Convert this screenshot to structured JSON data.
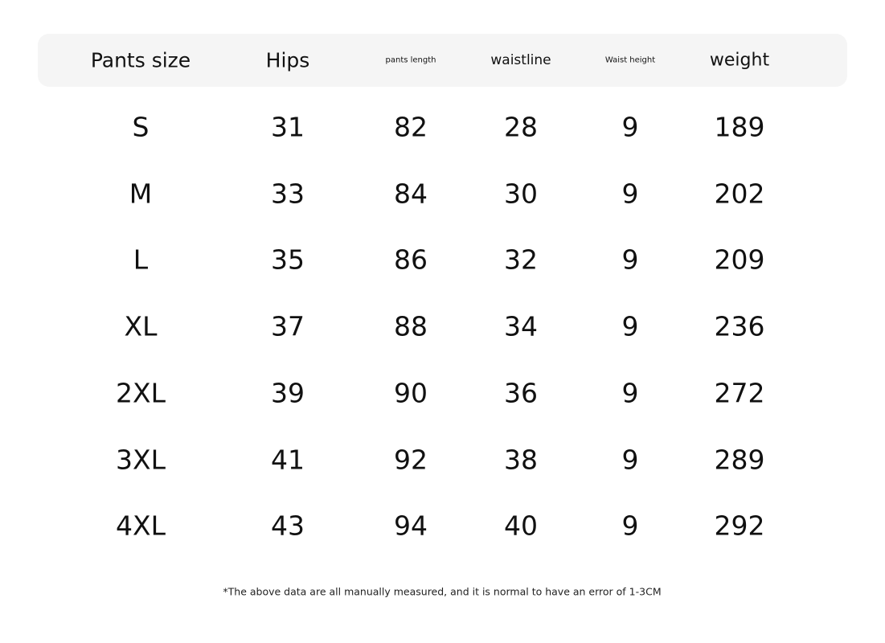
{
  "table": {
    "headers": [
      "Pants size",
      "Hips",
      "pants length",
      "waistline",
      "Waist height",
      "weight"
    ],
    "rows": [
      [
        "S",
        "31",
        "82",
        "28",
        "9",
        "189"
      ],
      [
        "M",
        "33",
        "84",
        "30",
        "9",
        "202"
      ],
      [
        "L",
        "35",
        "86",
        "32",
        "9",
        "209"
      ],
      [
        "XL",
        "37",
        "88",
        "34",
        "9",
        "236"
      ],
      [
        "2XL",
        "39",
        "90",
        "36",
        "9",
        "272"
      ],
      [
        "3XL",
        "41",
        "92",
        "38",
        "9",
        "289"
      ],
      [
        "4XL",
        "43",
        "94",
        "40",
        "9",
        "292"
      ]
    ]
  },
  "footnote": "*The above data are all manually measured, and it is normal to have an error of 1-3CM",
  "colors": {
    "header_background": "#f5f5f5",
    "text": "#111111"
  }
}
